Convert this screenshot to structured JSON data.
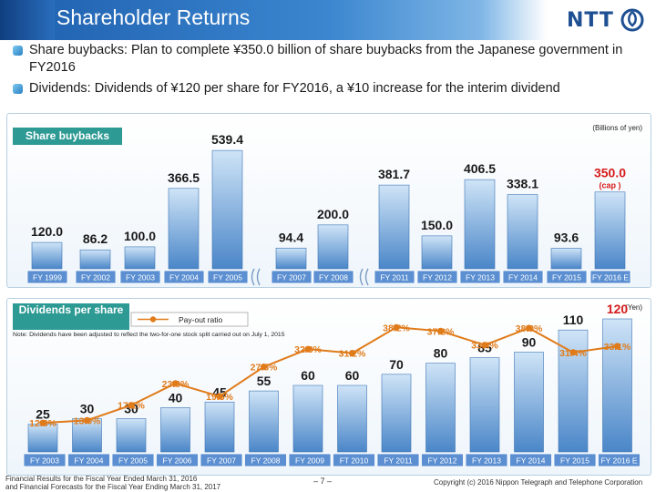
{
  "header": {
    "title": "Shareholder Returns",
    "logo_text": "NTT"
  },
  "bullets": [
    "Share buybacks: Plan to complete ¥350.0 billion of share buybacks from the Japanese government  in FY2016",
    "Dividends:  Dividends of ¥120 per share for FY2016, a ¥10 increase for the interim dividend"
  ],
  "colors": {
    "bar_top": "#cfe4f7",
    "bar_bottom": "#4a86c8",
    "category_bg": "#5b8fd1",
    "line": "#e07b1a",
    "highlight": "#d61b1b",
    "panel_label": "#2e9a94"
  },
  "footer": {
    "left_line1": "Financial Results for the Fiscal Year Ended March 31, 2016",
    "left_line2": "and Financial Forecasts for the Fiscal Year Ending March 31, 2017",
    "page": "– 7 –",
    "copyright": "Copyright (c) 2016  Nippon Telegraph and Telephone Corporation"
  },
  "chart_data": [
    {
      "type": "bar",
      "title": "Share buybacks",
      "unit_label": "(Billions of yen)",
      "categories": [
        "FY 1999",
        "FY 2002",
        "FY 2003",
        "FY 2004",
        "FY 2005",
        "FY 2007",
        "FY 2008",
        "FY 2011",
        "FY 2012",
        "FY 2013",
        "FY 2014",
        "FY 2015",
        "FY 2016 E"
      ],
      "values": [
        120.0,
        86.2,
        100.0,
        366.5,
        539.4,
        94.4,
        200.0,
        381.7,
        150.0,
        406.5,
        338.1,
        93.6,
        350.0
      ],
      "value_labels": [
        "120.0",
        "86.2",
        "100.0",
        "366.5",
        "539.4",
        "94.4",
        "200.0",
        "381.7",
        "150.0",
        "406.5",
        "338.1",
        "93.6",
        "350.0"
      ],
      "highlight_index": 12,
      "highlight_note": "(cap )",
      "axis_breaks_after": [
        "FY 2005",
        "FY 2008"
      ],
      "ylim": [
        0,
        540
      ]
    },
    {
      "type": "bar+line",
      "title": "Dividends per share",
      "unit_label": "(Yen)",
      "legend": "Pay-out ratio",
      "legend_position": "top-left",
      "note": "Note: Dividends have been adjusted to reflect the two-for-one stock split carried out on July 1, 2015",
      "categories": [
        "FY 2003",
        "FY 2004",
        "FY 2005",
        "FY 2006",
        "FY 2007",
        "FY 2008",
        "FY 2009",
        "FT 2010",
        "FY 2011",
        "FY 2012",
        "FY 2013",
        "FY 2014",
        "FY 2015",
        "FY 2016 E"
      ],
      "values": [
        25,
        30,
        30,
        40,
        45,
        55,
        60,
        60,
        70,
        80,
        85,
        90,
        110,
        120
      ],
      "value_labels": [
        "25",
        "30",
        "30",
        "40",
        "45",
        "55",
        "60",
        "60",
        "70",
        "80",
        "85",
        "90",
        "110",
        "120"
      ],
      "highlight_index": 13,
      "series": [
        {
          "name": "Pay-out ratio",
          "values": [
            12.3,
            13.0,
            17.1,
            23.0,
            19.5,
            27.5,
            32.3,
            31.2,
            38.2,
            37.2,
            33.4,
            38.0,
            31.4,
            33.1
          ],
          "labels": [
            "12.3%",
            "13.0%",
            "17.1%",
            "23.0%",
            "19.5%",
            "27.5%",
            "32.3%",
            "31.2%",
            "38.2%",
            "37.2%",
            "33.4%",
            "38.0%",
            "31.4%",
            "33.1%"
          ]
        }
      ],
      "ylim": [
        0,
        120
      ],
      "ratio_lim": [
        0,
        40
      ]
    }
  ]
}
